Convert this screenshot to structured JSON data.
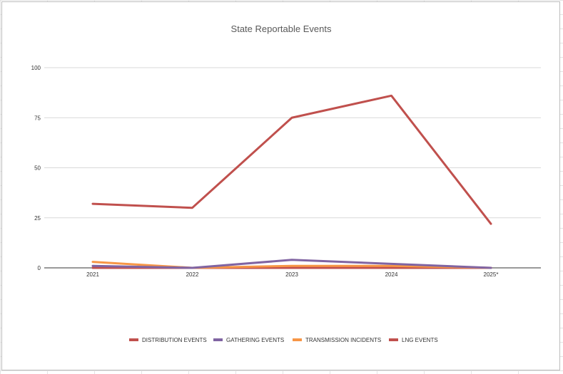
{
  "chart_data": {
    "type": "line",
    "title": "State Reportable Events",
    "categories": [
      "2021",
      "2022",
      "2023",
      "2024",
      "2025*"
    ],
    "ylim": [
      0,
      100
    ],
    "yticks": [
      0,
      25,
      50,
      75,
      100
    ],
    "grid": true,
    "legend_position": "bottom",
    "series": [
      {
        "name": "DISTRIBUTION EVENTS",
        "color": "#c0504d",
        "values": [
          32,
          30,
          75,
          86,
          22
        ]
      },
      {
        "name": "GATHERING EVENTS",
        "color": "#8064a2",
        "values": [
          1,
          0,
          4,
          2,
          0
        ]
      },
      {
        "name": "TRANSMISSION INCIDENTS",
        "color": "#f79646",
        "values": [
          3,
          0,
          1,
          1,
          0
        ]
      },
      {
        "name": "LNG EVENTS",
        "color": "#c0504d",
        "values": [
          0,
          0,
          0,
          0,
          0
        ]
      }
    ]
  }
}
